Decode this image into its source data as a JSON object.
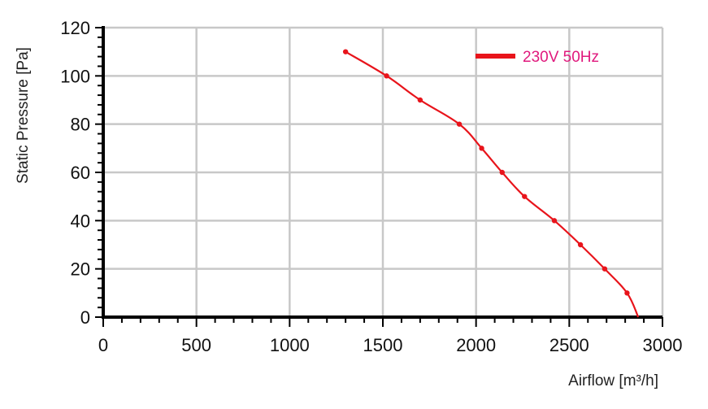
{
  "chart_data": {
    "type": "line",
    "title": "",
    "xlabel": "Airflow [m³/h]",
    "ylabel": "Static Pressure [Pa]",
    "xlim": [
      0,
      3000
    ],
    "ylim": [
      0,
      120
    ],
    "x_ticks": [
      "0",
      "500",
      "1000",
      "1500",
      "2000",
      "2500",
      "3000"
    ],
    "y_ticks": [
      "0",
      "20",
      "40",
      "60",
      "80",
      "100",
      "120"
    ],
    "grid": true,
    "legend_position": "top-right",
    "series": [
      {
        "name": "230V 50Hz",
        "color": "#e8141b",
        "legend_text_color": "#e0197d",
        "x": [
          1300,
          1520,
          1700,
          1910,
          2030,
          2140,
          2260,
          2420,
          2560,
          2690,
          2810,
          2870
        ],
        "y": [
          110,
          100,
          90,
          80,
          70,
          60,
          50,
          40,
          30,
          20,
          10,
          0
        ],
        "markers": [
          true,
          true,
          true,
          true,
          true,
          true,
          true,
          true,
          true,
          true,
          true,
          false
        ]
      }
    ]
  }
}
